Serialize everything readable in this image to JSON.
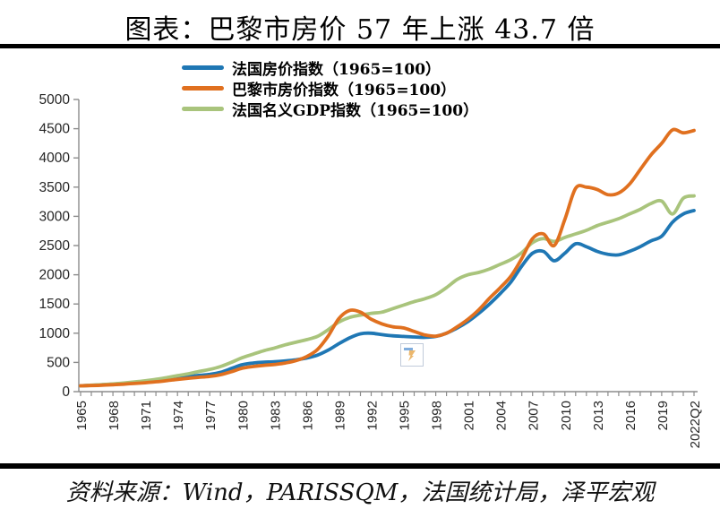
{
  "title": "图表：巴黎市房价 57 年上涨 43.7 倍",
  "source": "资料来源：Wind，PARISSQM，法国统计局，泽平宏观",
  "colors": {
    "france_housing": "#1f77b4",
    "paris_housing": "#e0701f",
    "france_gdp": "#a9c47c",
    "axis": "#8c8c8c",
    "tick_label": "#262626",
    "divider": "#000000"
  },
  "chart_data": {
    "type": "line",
    "title": "图表：巴黎市房价 57 年上涨 43.7 倍",
    "xlabel": "",
    "ylabel": "",
    "ylim": [
      0,
      5000
    ],
    "y_ticks": [
      0,
      500,
      1000,
      1500,
      2000,
      2500,
      3000,
      3500,
      4000,
      4500,
      5000
    ],
    "grid": false,
    "legend_position": "top-center",
    "x_labels": [
      "1965",
      "1966",
      "1967",
      "1968",
      "1969",
      "1970",
      "1971",
      "1972",
      "1973",
      "1974",
      "1975",
      "1976",
      "1977",
      "1978",
      "1979",
      "1980",
      "1981",
      "1982",
      "1983",
      "1984",
      "1985",
      "1986",
      "1987",
      "1988",
      "1989",
      "1990",
      "1991",
      "1992",
      "1993",
      "1994",
      "1995",
      "1996",
      "1997",
      "1998",
      "1999",
      "2000",
      "2001",
      "2002",
      "2003",
      "2004",
      "2005",
      "2006",
      "2007",
      "2008",
      "2009",
      "2010",
      "2011",
      "2012",
      "2013",
      "2014",
      "2015",
      "2016",
      "2017",
      "2018",
      "2019",
      "2020",
      "2021",
      "2022Q2"
    ],
    "x_tick_label_indices": [
      0,
      3,
      6,
      9,
      12,
      15,
      18,
      21,
      24,
      27,
      30,
      33,
      36,
      39,
      42,
      45,
      48,
      51,
      54,
      57
    ],
    "series": [
      {
        "name": "法国房价指数（1965=100）",
        "color": "#1f77b4",
        "values": [
          100,
          108,
          118,
          128,
          142,
          158,
          172,
          190,
          215,
          240,
          258,
          278,
          295,
          330,
          395,
          460,
          490,
          505,
          510,
          525,
          545,
          575,
          625,
          710,
          820,
          920,
          990,
          1000,
          975,
          955,
          945,
          935,
          930,
          945,
          1000,
          1090,
          1200,
          1340,
          1500,
          1680,
          1880,
          2150,
          2370,
          2400,
          2240,
          2370,
          2530,
          2480,
          2400,
          2350,
          2340,
          2400,
          2480,
          2580,
          2660,
          2900,
          3040,
          3100
        ]
      },
      {
        "name": "巴黎市房价指数（1965=100）",
        "color": "#e0701f",
        "values": [
          100,
          104,
          110,
          118,
          128,
          140,
          152,
          168,
          188,
          210,
          228,
          245,
          260,
          290,
          340,
          400,
          430,
          450,
          465,
          490,
          530,
          600,
          720,
          950,
          1250,
          1390,
          1360,
          1240,
          1160,
          1110,
          1090,
          1030,
          970,
          950,
          1000,
          1110,
          1240,
          1400,
          1600,
          1780,
          1980,
          2280,
          2620,
          2700,
          2500,
          2950,
          3480,
          3500,
          3460,
          3370,
          3400,
          3550,
          3800,
          4050,
          4250,
          4480,
          4430,
          4470
        ]
      },
      {
        "name": "法国名义GDP指数（1965=100）",
        "color": "#a9c47c",
        "values": [
          100,
          110,
          120,
          132,
          148,
          165,
          185,
          210,
          240,
          275,
          305,
          345,
          380,
          430,
          500,
          580,
          640,
          700,
          745,
          800,
          845,
          890,
          945,
          1060,
          1190,
          1270,
          1310,
          1340,
          1360,
          1420,
          1480,
          1540,
          1590,
          1660,
          1780,
          1920,
          2000,
          2040,
          2100,
          2180,
          2260,
          2380,
          2550,
          2620,
          2570,
          2640,
          2700,
          2760,
          2840,
          2900,
          2960,
          3040,
          3120,
          3220,
          3260,
          3040,
          3310,
          3350
        ]
      }
    ]
  }
}
